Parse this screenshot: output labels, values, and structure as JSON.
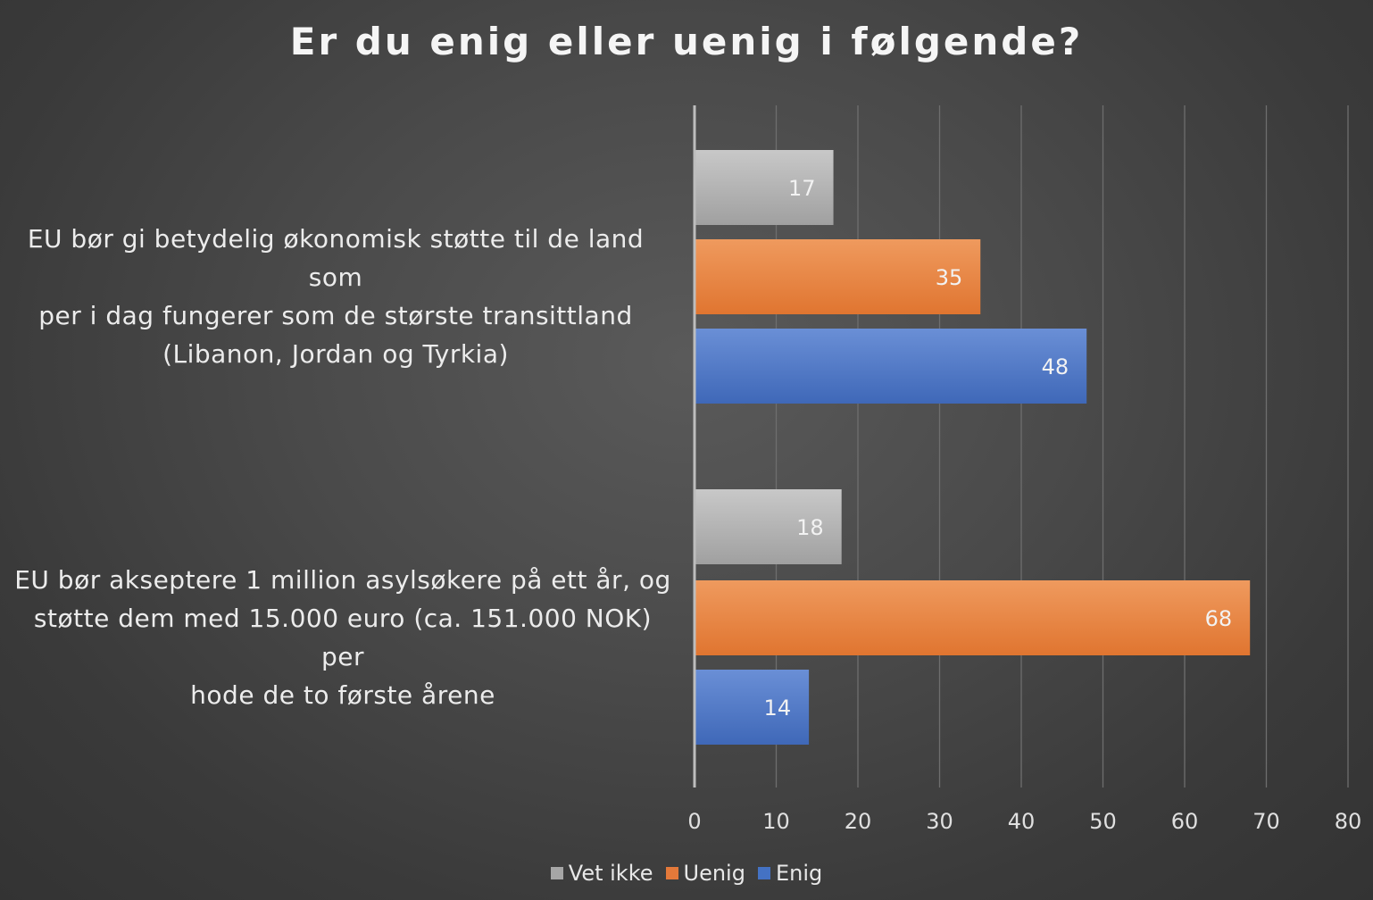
{
  "chart_data": {
    "type": "bar",
    "orientation": "horizontal",
    "title": "Er du enig eller uenig i følgende?",
    "categories": [
      "EU bør gi betydelig økonomisk støtte til de land som per i dag fungerer som de største transittland (Libanon, Jordan og Tyrkia)",
      "EU bør akseptere 1 million asylsøkere på ett år, og støtte dem med 15.000 euro (ca. 151.000 NOK) per hode de to første årene"
    ],
    "category_lines": [
      [
        "EU bør gi betydelig økonomisk støtte til de land som",
        "per i dag fungerer som de største transittland",
        "(Libanon, Jordan og Tyrkia)"
      ],
      [
        "EU bør akseptere 1 million asylsøkere på ett år, og",
        "støtte dem med 15.000 euro (ca. 151.000 NOK) per",
        "hode de to første årene"
      ]
    ],
    "series": [
      {
        "name": "Vet ikke",
        "color": "#a6a6a6",
        "values": [
          17,
          18
        ]
      },
      {
        "name": "Uenig",
        "color": "#e4793a",
        "values": [
          35,
          68
        ]
      },
      {
        "name": "Enig",
        "color": "#4472c4",
        "values": [
          48,
          14
        ]
      }
    ],
    "xlim": [
      0,
      80
    ],
    "xticks": [
      0,
      10,
      20,
      30,
      40,
      50,
      60,
      70,
      80
    ],
    "grid": true,
    "legend_position": "bottom-center",
    "data_labels": true
  }
}
